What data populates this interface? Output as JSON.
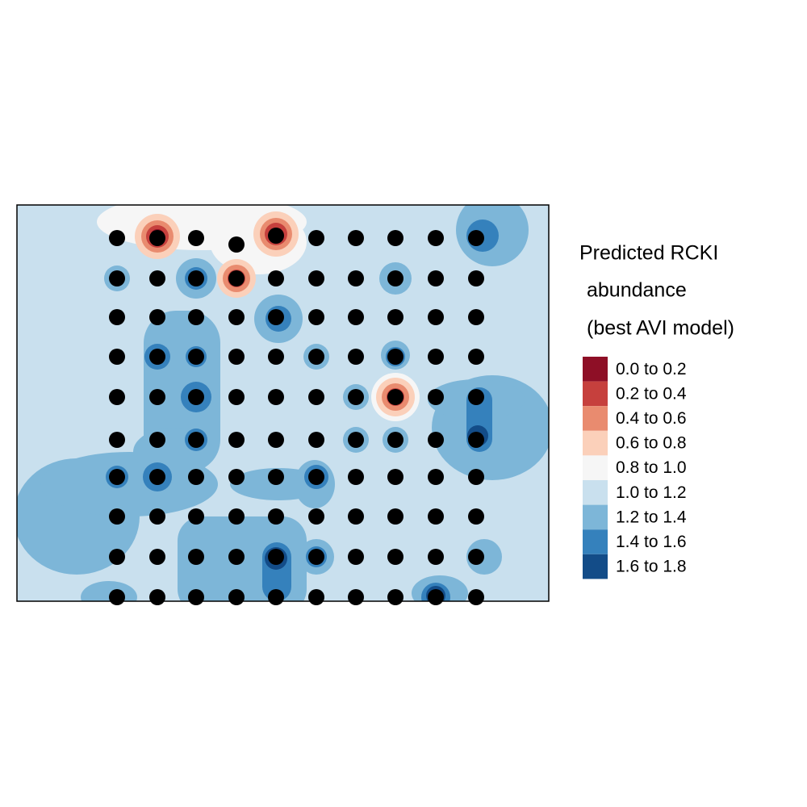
{
  "legend": {
    "title": [
      "Predicted RCKI",
      "abundance",
      "(best AVI model)"
    ],
    "classes": [
      {
        "label": "0.0 to 0.2",
        "color": "#8e0f26"
      },
      {
        "label": "0.2 to 0.4",
        "color": "#c6403d"
      },
      {
        "label": "0.4 to 0.6",
        "color": "#e98b6f"
      },
      {
        "label": "0.6 to 0.8",
        "color": "#fbd0ba"
      },
      {
        "label": "0.8 to 1.0",
        "color": "#f6f6f6"
      },
      {
        "label": "1.0 to 1.2",
        "color": "#c9e0ee"
      },
      {
        "label": "1.2 to 1.4",
        "color": "#7db6d8"
      },
      {
        "label": "1.4 to 1.6",
        "color": "#3581bc"
      },
      {
        "label": "1.6 to 1.8",
        "color": "#134c88"
      }
    ]
  }
}
